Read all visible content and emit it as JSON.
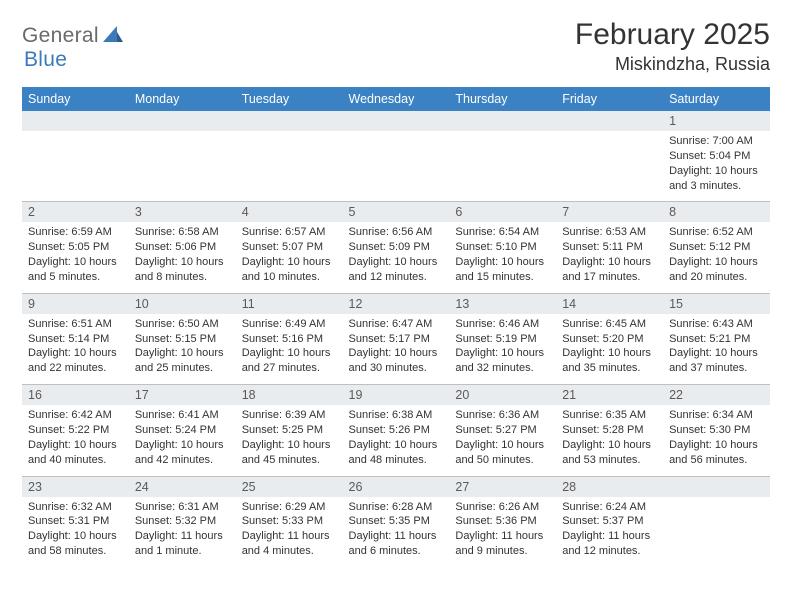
{
  "logo": {
    "text1": "General",
    "text2": "Blue"
  },
  "title": "February 2025",
  "location": "Miskindzha, Russia",
  "colors": {
    "header_bg": "#3b82c4",
    "header_text": "#ffffff",
    "daynum_bg": "#e9ecef",
    "border": "#c0c0c0",
    "logo_gray": "#6a6a6a",
    "logo_blue": "#3a7ab8",
    "text": "#333333",
    "background": "#ffffff"
  },
  "typography": {
    "title_fontsize": 30,
    "location_fontsize": 18,
    "header_fontsize": 12.5,
    "daynum_fontsize": 12.5,
    "body_fontsize": 11
  },
  "days_of_week": [
    "Sunday",
    "Monday",
    "Tuesday",
    "Wednesday",
    "Thursday",
    "Friday",
    "Saturday"
  ],
  "weeks": [
    [
      {
        "n": "",
        "sr": "",
        "ss": "",
        "dl": ""
      },
      {
        "n": "",
        "sr": "",
        "ss": "",
        "dl": ""
      },
      {
        "n": "",
        "sr": "",
        "ss": "",
        "dl": ""
      },
      {
        "n": "",
        "sr": "",
        "ss": "",
        "dl": ""
      },
      {
        "n": "",
        "sr": "",
        "ss": "",
        "dl": ""
      },
      {
        "n": "",
        "sr": "",
        "ss": "",
        "dl": ""
      },
      {
        "n": "1",
        "sr": "Sunrise: 7:00 AM",
        "ss": "Sunset: 5:04 PM",
        "dl": "Daylight: 10 hours and 3 minutes."
      }
    ],
    [
      {
        "n": "2",
        "sr": "Sunrise: 6:59 AM",
        "ss": "Sunset: 5:05 PM",
        "dl": "Daylight: 10 hours and 5 minutes."
      },
      {
        "n": "3",
        "sr": "Sunrise: 6:58 AM",
        "ss": "Sunset: 5:06 PM",
        "dl": "Daylight: 10 hours and 8 minutes."
      },
      {
        "n": "4",
        "sr": "Sunrise: 6:57 AM",
        "ss": "Sunset: 5:07 PM",
        "dl": "Daylight: 10 hours and 10 minutes."
      },
      {
        "n": "5",
        "sr": "Sunrise: 6:56 AM",
        "ss": "Sunset: 5:09 PM",
        "dl": "Daylight: 10 hours and 12 minutes."
      },
      {
        "n": "6",
        "sr": "Sunrise: 6:54 AM",
        "ss": "Sunset: 5:10 PM",
        "dl": "Daylight: 10 hours and 15 minutes."
      },
      {
        "n": "7",
        "sr": "Sunrise: 6:53 AM",
        "ss": "Sunset: 5:11 PM",
        "dl": "Daylight: 10 hours and 17 minutes."
      },
      {
        "n": "8",
        "sr": "Sunrise: 6:52 AM",
        "ss": "Sunset: 5:12 PM",
        "dl": "Daylight: 10 hours and 20 minutes."
      }
    ],
    [
      {
        "n": "9",
        "sr": "Sunrise: 6:51 AM",
        "ss": "Sunset: 5:14 PM",
        "dl": "Daylight: 10 hours and 22 minutes."
      },
      {
        "n": "10",
        "sr": "Sunrise: 6:50 AM",
        "ss": "Sunset: 5:15 PM",
        "dl": "Daylight: 10 hours and 25 minutes."
      },
      {
        "n": "11",
        "sr": "Sunrise: 6:49 AM",
        "ss": "Sunset: 5:16 PM",
        "dl": "Daylight: 10 hours and 27 minutes."
      },
      {
        "n": "12",
        "sr": "Sunrise: 6:47 AM",
        "ss": "Sunset: 5:17 PM",
        "dl": "Daylight: 10 hours and 30 minutes."
      },
      {
        "n": "13",
        "sr": "Sunrise: 6:46 AM",
        "ss": "Sunset: 5:19 PM",
        "dl": "Daylight: 10 hours and 32 minutes."
      },
      {
        "n": "14",
        "sr": "Sunrise: 6:45 AM",
        "ss": "Sunset: 5:20 PM",
        "dl": "Daylight: 10 hours and 35 minutes."
      },
      {
        "n": "15",
        "sr": "Sunrise: 6:43 AM",
        "ss": "Sunset: 5:21 PM",
        "dl": "Daylight: 10 hours and 37 minutes."
      }
    ],
    [
      {
        "n": "16",
        "sr": "Sunrise: 6:42 AM",
        "ss": "Sunset: 5:22 PM",
        "dl": "Daylight: 10 hours and 40 minutes."
      },
      {
        "n": "17",
        "sr": "Sunrise: 6:41 AM",
        "ss": "Sunset: 5:24 PM",
        "dl": "Daylight: 10 hours and 42 minutes."
      },
      {
        "n": "18",
        "sr": "Sunrise: 6:39 AM",
        "ss": "Sunset: 5:25 PM",
        "dl": "Daylight: 10 hours and 45 minutes."
      },
      {
        "n": "19",
        "sr": "Sunrise: 6:38 AM",
        "ss": "Sunset: 5:26 PM",
        "dl": "Daylight: 10 hours and 48 minutes."
      },
      {
        "n": "20",
        "sr": "Sunrise: 6:36 AM",
        "ss": "Sunset: 5:27 PM",
        "dl": "Daylight: 10 hours and 50 minutes."
      },
      {
        "n": "21",
        "sr": "Sunrise: 6:35 AM",
        "ss": "Sunset: 5:28 PM",
        "dl": "Daylight: 10 hours and 53 minutes."
      },
      {
        "n": "22",
        "sr": "Sunrise: 6:34 AM",
        "ss": "Sunset: 5:30 PM",
        "dl": "Daylight: 10 hours and 56 minutes."
      }
    ],
    [
      {
        "n": "23",
        "sr": "Sunrise: 6:32 AM",
        "ss": "Sunset: 5:31 PM",
        "dl": "Daylight: 10 hours and 58 minutes."
      },
      {
        "n": "24",
        "sr": "Sunrise: 6:31 AM",
        "ss": "Sunset: 5:32 PM",
        "dl": "Daylight: 11 hours and 1 minute."
      },
      {
        "n": "25",
        "sr": "Sunrise: 6:29 AM",
        "ss": "Sunset: 5:33 PM",
        "dl": "Daylight: 11 hours and 4 minutes."
      },
      {
        "n": "26",
        "sr": "Sunrise: 6:28 AM",
        "ss": "Sunset: 5:35 PM",
        "dl": "Daylight: 11 hours and 6 minutes."
      },
      {
        "n": "27",
        "sr": "Sunrise: 6:26 AM",
        "ss": "Sunset: 5:36 PM",
        "dl": "Daylight: 11 hours and 9 minutes."
      },
      {
        "n": "28",
        "sr": "Sunrise: 6:24 AM",
        "ss": "Sunset: 5:37 PM",
        "dl": "Daylight: 11 hours and 12 minutes."
      },
      {
        "n": "",
        "sr": "",
        "ss": "",
        "dl": ""
      }
    ]
  ]
}
